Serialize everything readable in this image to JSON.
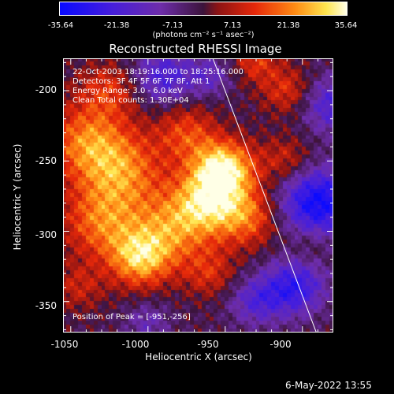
{
  "colorbar": {
    "ticks": [
      "-35.64",
      "-21.38",
      "-7.13",
      "7.13",
      "21.38",
      "35.64"
    ],
    "units": "(photons cm⁻² s⁻¹ asec⁻²)",
    "range": [
      -35.64,
      35.64
    ]
  },
  "chart_data": {
    "type": "heatmap",
    "title": "Reconstructed RHESSI Image",
    "xlabel": "Heliocentric X (arcsec)",
    "ylabel": "Heliocentric Y (arcsec)",
    "xlim": [
      -1055,
      -880
    ],
    "ylim": [
      -372,
      -177
    ],
    "x_ticks": [
      "-1050",
      "-1000",
      "-950",
      "-900"
    ],
    "y_ticks": [
      "-200",
      "-250",
      "-300",
      "-350"
    ],
    "peak": [
      -951,
      -256
    ],
    "limb_line": [
      [
        -958,
        -177
      ],
      [
        -891,
        -372
      ]
    ],
    "annotations": [
      "22-Oct-2003 18:19:16.000 to 18:25:16.000",
      "Detectors: 3F 4F 5F 6F 7F 8F, Att 1",
      "Energy Range: 3.0 - 6.0 keV",
      "Clean    Total counts: 1.30E+04"
    ],
    "peak_label": "Position of Peak = [-951,-256]"
  },
  "footer": "6-May-2022 13:55"
}
